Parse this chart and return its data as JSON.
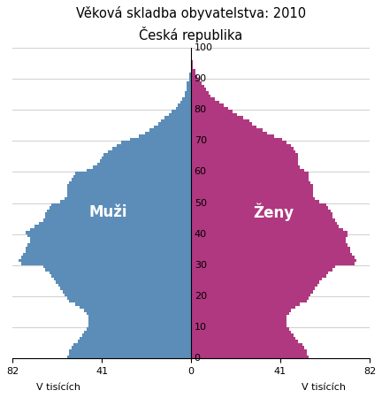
{
  "title": "Věková skladba obyvatelstva: 2010",
  "subtitle": "Česká republika",
  "male_label": "Muži",
  "female_label": "Ženy",
  "xlabel_left": "V tisících",
  "xlabel_right": "V tisících",
  "male_color": "#5b8db8",
  "female_color": "#b03880",
  "xlim": 82,
  "ylim": 100,
  "yticks": [
    0,
    10,
    20,
    30,
    40,
    50,
    60,
    70,
    80,
    90,
    100
  ],
  "ages": [
    0,
    1,
    2,
    3,
    4,
    5,
    6,
    7,
    8,
    9,
    10,
    11,
    12,
    13,
    14,
    15,
    16,
    17,
    18,
    19,
    20,
    21,
    22,
    23,
    24,
    25,
    26,
    27,
    28,
    29,
    30,
    31,
    32,
    33,
    34,
    35,
    36,
    37,
    38,
    39,
    40,
    41,
    42,
    43,
    44,
    45,
    46,
    47,
    48,
    49,
    50,
    51,
    52,
    53,
    54,
    55,
    56,
    57,
    58,
    59,
    60,
    61,
    62,
    63,
    64,
    65,
    66,
    67,
    68,
    69,
    70,
    71,
    72,
    73,
    74,
    75,
    76,
    77,
    78,
    79,
    80,
    81,
    82,
    83,
    84,
    85,
    86,
    87,
    88,
    89,
    90,
    91,
    92,
    93,
    94,
    95,
    96,
    97,
    98,
    99
  ],
  "males": [
    57,
    56,
    56,
    55,
    54,
    52,
    51,
    50,
    49,
    48,
    47,
    47,
    47,
    47,
    48,
    49,
    51,
    53,
    56,
    57,
    58,
    59,
    60,
    61,
    62,
    63,
    64,
    65,
    67,
    68,
    78,
    79,
    78,
    77,
    76,
    76,
    75,
    74,
    74,
    75,
    76,
    74,
    72,
    70,
    68,
    67,
    67,
    66,
    65,
    64,
    60,
    58,
    57,
    57,
    57,
    57,
    56,
    55,
    54,
    53,
    48,
    45,
    43,
    42,
    41,
    40,
    38,
    36,
    34,
    32,
    28,
    24,
    21,
    19,
    17,
    15,
    14,
    12,
    10,
    9,
    7,
    6,
    5,
    4,
    3,
    3,
    2,
    2,
    2,
    1,
    1,
    1,
    0,
    0,
    0,
    0,
    0,
    0,
    0,
    0
  ],
  "females": [
    54,
    53,
    53,
    52,
    51,
    49,
    48,
    47,
    46,
    45,
    44,
    44,
    44,
    44,
    45,
    46,
    48,
    50,
    53,
    54,
    55,
    56,
    57,
    58,
    59,
    60,
    62,
    63,
    65,
    66,
    75,
    76,
    75,
    74,
    73,
    73,
    72,
    71,
    71,
    72,
    72,
    70,
    68,
    67,
    66,
    65,
    65,
    64,
    63,
    62,
    59,
    57,
    56,
    56,
    56,
    56,
    55,
    54,
    54,
    54,
    52,
    50,
    49,
    49,
    49,
    49,
    48,
    47,
    46,
    44,
    42,
    38,
    35,
    33,
    30,
    28,
    27,
    24,
    21,
    19,
    17,
    15,
    13,
    11,
    9,
    8,
    7,
    6,
    5,
    4,
    3,
    2,
    2,
    1,
    1,
    1,
    0,
    0,
    0,
    0
  ]
}
